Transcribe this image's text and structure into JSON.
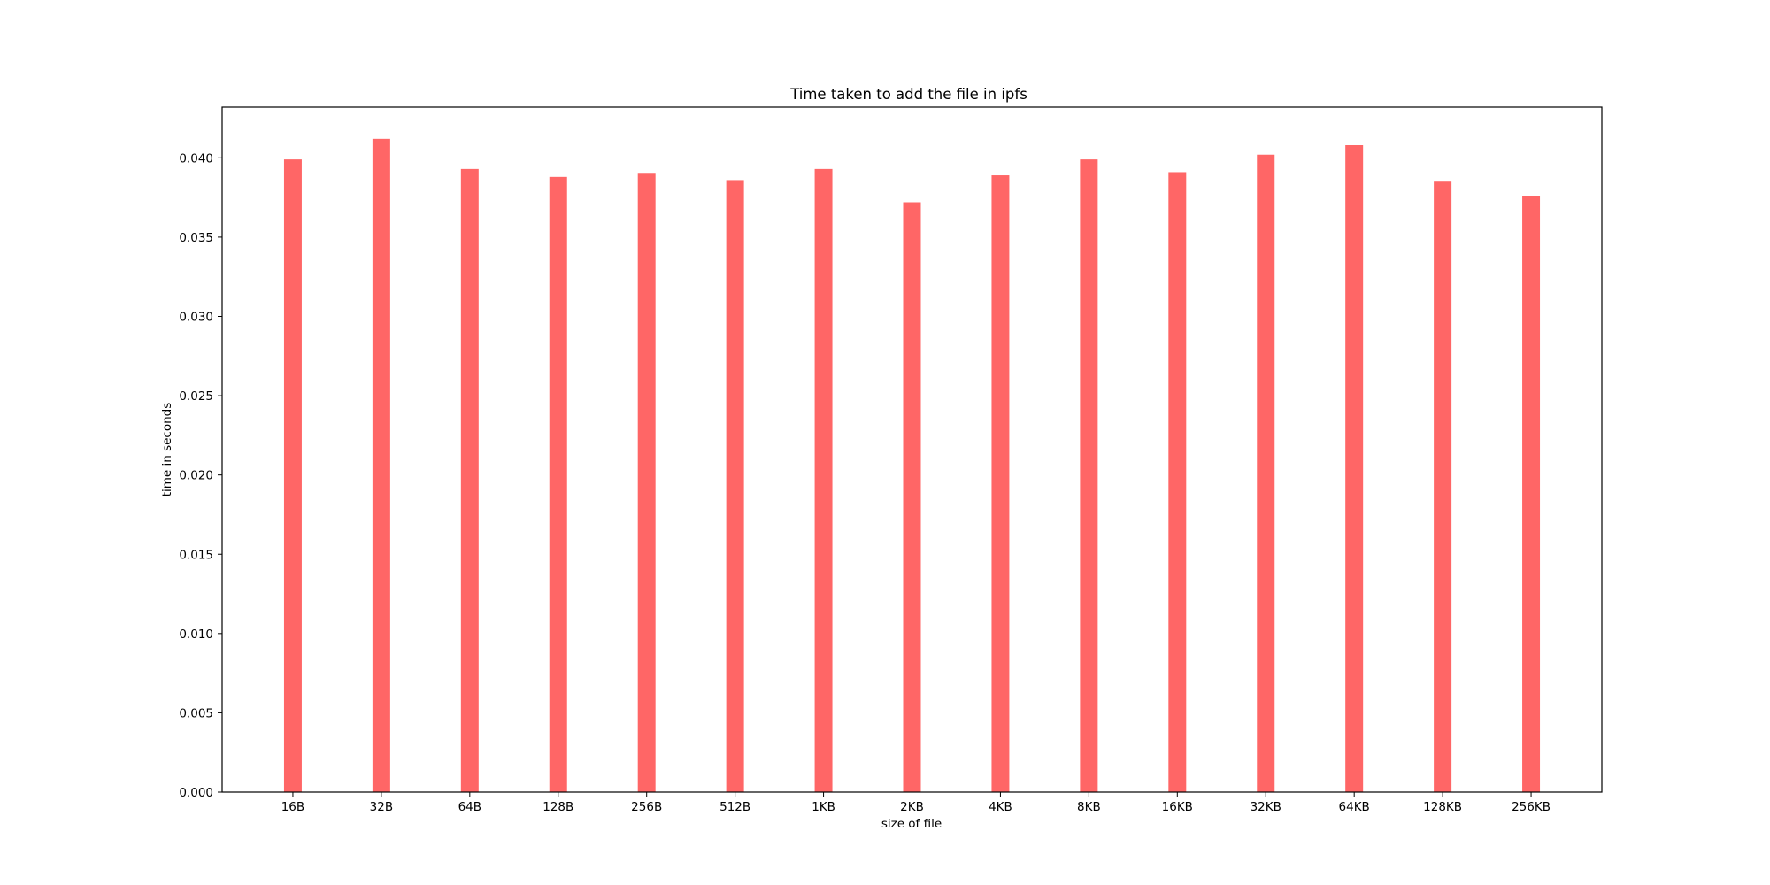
{
  "chart_data": {
    "type": "bar",
    "title": "Time taken to add the file in ipfs",
    "xlabel": "size of file",
    "ylabel": "time in seconds",
    "categories": [
      "16B",
      "32B",
      "64B",
      "128B",
      "256B",
      "512B",
      "1KB",
      "2KB",
      "4KB",
      "8KB",
      "16KB",
      "32KB",
      "64KB",
      "128KB",
      "256KB"
    ],
    "values": [
      0.0399,
      0.0412,
      0.0393,
      0.0388,
      0.039,
      0.0386,
      0.0393,
      0.0372,
      0.0389,
      0.0399,
      0.0391,
      0.0402,
      0.0408,
      0.0385,
      0.0376
    ],
    "ylim": [
      0,
      0.0432
    ],
    "yticks": [
      "0.000",
      "0.005",
      "0.010",
      "0.015",
      "0.020",
      "0.025",
      "0.030",
      "0.035",
      "0.040"
    ],
    "bar_color": "#ff6666",
    "legend": "none",
    "grid": false
  }
}
